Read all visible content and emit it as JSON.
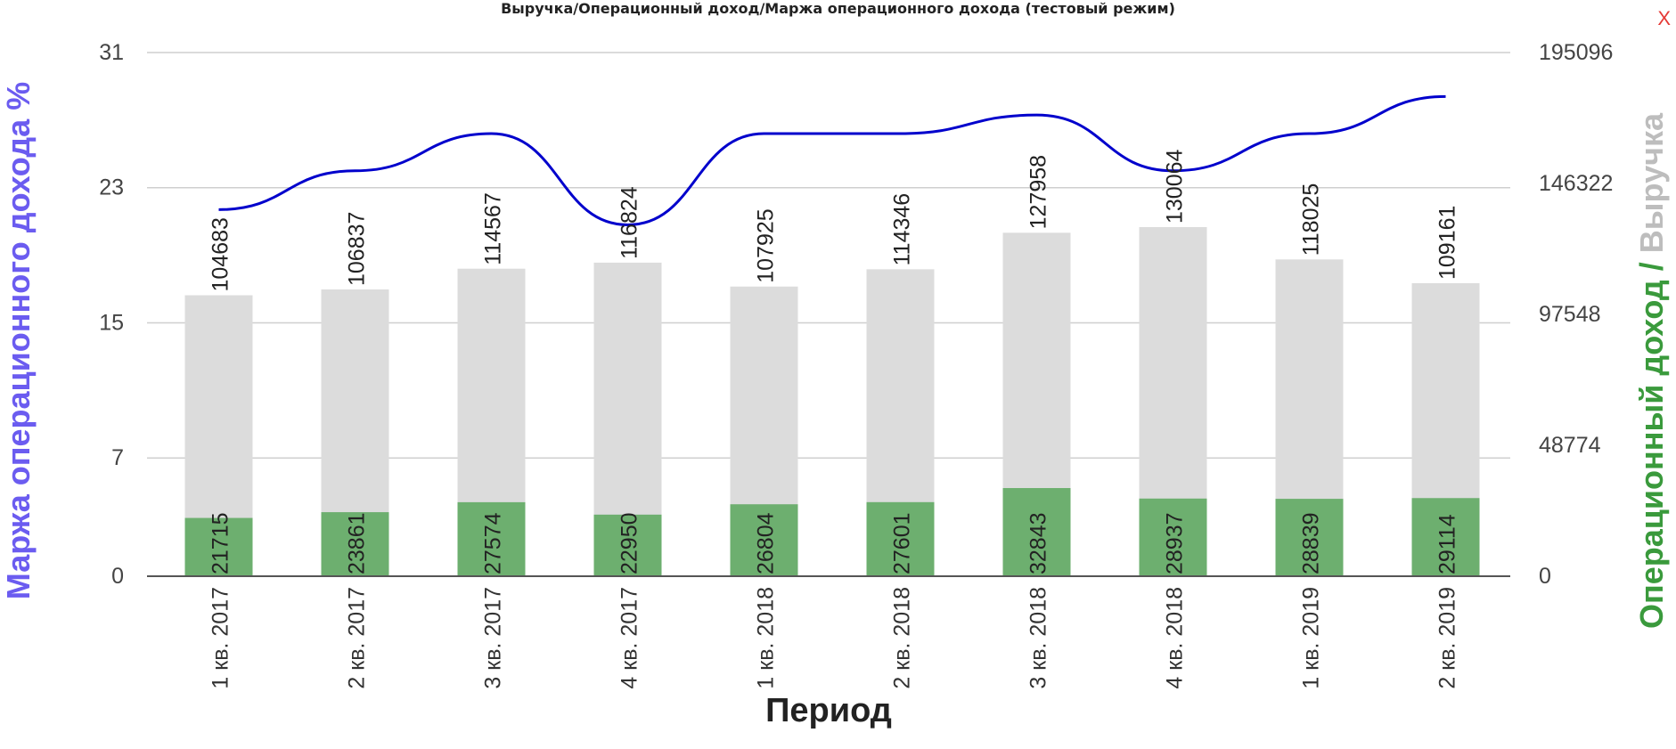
{
  "chart_data": {
    "type": "bar",
    "title": "Выручка/Операционный доход/Маржа операционного дохода (тестовый режим)",
    "xlabel": "Период",
    "ylabel_left": "Маржа операционного дохода %",
    "ylabel_right_part1": "Операционный доход",
    "ylabel_right_sep": " / ",
    "ylabel_right_part2": "Выручка",
    "categories": [
      "1 кв. 2017",
      "2 кв. 2017",
      "3 кв. 2017",
      "4 кв. 2017",
      "1 кв. 2018",
      "2 кв. 2018",
      "3 кв. 2018",
      "4 кв. 2018",
      "1 кв. 2019",
      "2 кв. 2019"
    ],
    "left_axis": {
      "ticks": [
        0,
        7,
        15,
        23,
        31
      ],
      "ylim": [
        0,
        31
      ]
    },
    "right_axis": {
      "ticks": [
        0,
        48774,
        97548,
        146322,
        195096
      ],
      "ylim": [
        0,
        195096
      ]
    },
    "series": [
      {
        "name": "Выручка",
        "axis": "right",
        "kind": "bar",
        "color": "#dcdcdc",
        "values": [
          104683,
          106837,
          114567,
          116824,
          107925,
          114346,
          127958,
          130064,
          118025,
          109161
        ]
      },
      {
        "name": "Операционный доход",
        "axis": "right",
        "kind": "bar",
        "color": "#6daf6f",
        "values": [
          21715,
          23861,
          27574,
          22950,
          26804,
          27601,
          32843,
          28937,
          28839,
          29114
        ]
      },
      {
        "name": "Маржа операционного дохода %",
        "axis": "left",
        "kind": "line",
        "color": "#0000cc",
        "values": [
          21.7,
          24.0,
          26.2,
          20.8,
          26.2,
          26.2,
          27.3,
          24.0,
          26.2,
          28.4
        ]
      }
    ],
    "grid": true,
    "axis_label_colors": {
      "left": "#6b5cf0",
      "right_part1": "#3a9a3c",
      "right_part2": "#bdbdbd"
    }
  },
  "ui": {
    "close_label": "X"
  }
}
